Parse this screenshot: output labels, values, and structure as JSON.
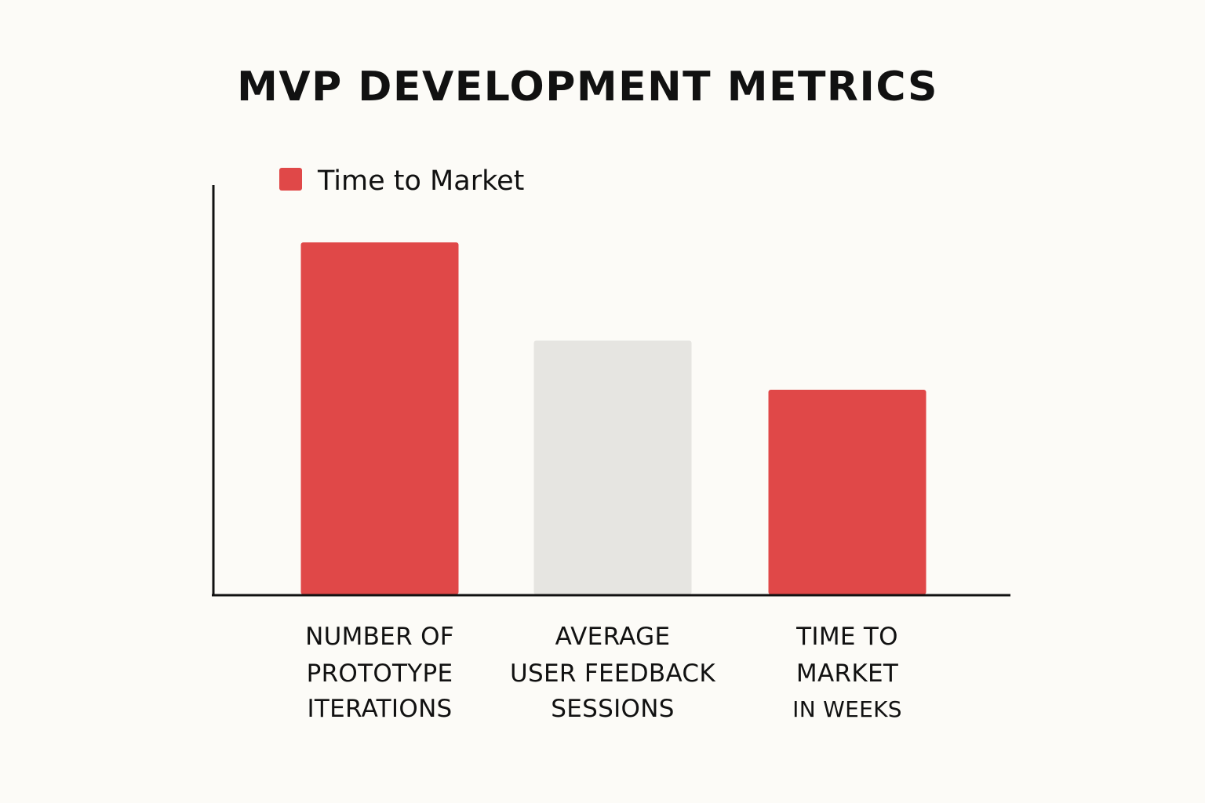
{
  "chart_data": {
    "type": "bar",
    "title": "MVP DEVELOPMENT METRICS",
    "xlabel": "",
    "ylabel": "",
    "ylim": [
      0,
      10
    ],
    "legend": {
      "position": "top-left",
      "entries": [
        {
          "label": "Time to Market",
          "color": "#e04848"
        }
      ]
    },
    "grid": false,
    "categories": [
      {
        "lines": [
          "NUMBER OF",
          "PROTOTYPE",
          "ITERATIONS"
        ],
        "value": 8.6,
        "color": "#e04848"
      },
      {
        "lines": [
          "AVERAGE",
          "USER FEEDBACK",
          "SESSIONS"
        ],
        "value": 6.2,
        "color": "#e6e5e1"
      },
      {
        "lines": [
          "TIME TO",
          "MARKET",
          "IN WEEKS"
        ],
        "value": 5.0,
        "color": "#e04848"
      }
    ]
  }
}
